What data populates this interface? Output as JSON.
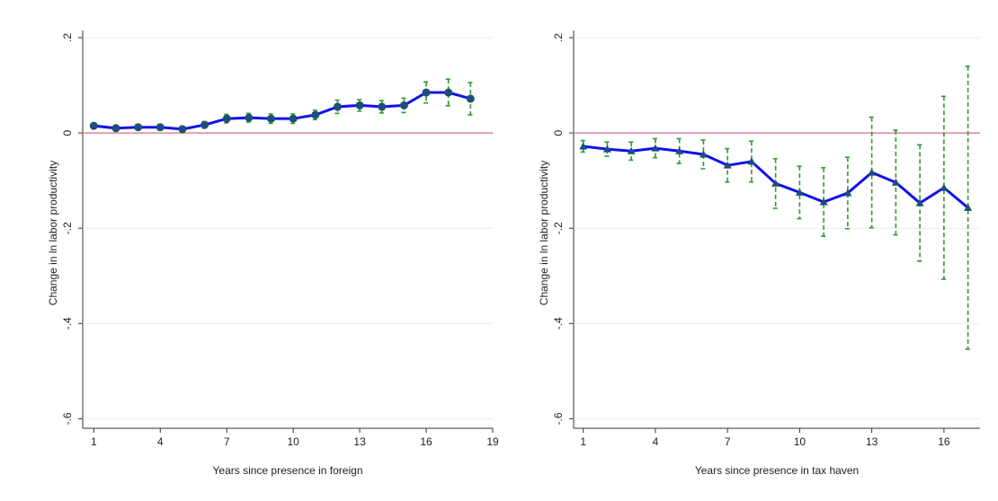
{
  "chart_data": [
    {
      "type": "line",
      "xlabel": "Years since presence in foreign",
      "ylabel": "Change in ln labor productivity",
      "x": [
        1,
        2,
        3,
        4,
        5,
        6,
        7,
        8,
        9,
        10,
        11,
        12,
        13,
        14,
        15,
        16,
        17,
        18
      ],
      "values": [
        0.015,
        0.01,
        0.012,
        0.012,
        0.008,
        0.017,
        0.03,
        0.032,
        0.03,
        0.03,
        0.038,
        0.055,
        0.058,
        0.055,
        0.058,
        0.085,
        0.085,
        0.072
      ],
      "errors": [
        0.005,
        0.005,
        0.005,
        0.006,
        0.006,
        0.007,
        0.009,
        0.009,
        0.01,
        0.01,
        0.01,
        0.014,
        0.012,
        0.013,
        0.015,
        0.022,
        0.028,
        0.034
      ],
      "color": "#1010f0",
      "error_color": "#2e9a2e",
      "marker": "circle",
      "marker_color": "#1f4e79",
      "hline": 0,
      "hline_color": "#d9879a",
      "xlim": [
        0.5,
        19
      ],
      "xticks": [
        1,
        4,
        7,
        10,
        13,
        16,
        19
      ],
      "ylim": [
        -0.62,
        0.2
      ],
      "yticks": [
        {
          "value": 0.2,
          "label": ".2"
        },
        0,
        {
          "value": -0.2,
          "label": "-.2"
        },
        {
          "value": -0.4,
          "label": "-.4"
        },
        {
          "value": -0.6,
          "label": "-.6"
        }
      ],
      "grid": true
    },
    {
      "type": "line",
      "xlabel": "Years since presence in tax haven",
      "ylabel": "Change in ln labor productivity",
      "x": [
        1,
        2,
        3,
        4,
        5,
        6,
        7,
        8,
        9,
        10,
        11,
        12,
        13,
        14,
        15,
        16,
        17
      ],
      "values": [
        -0.028,
        -0.034,
        -0.038,
        -0.032,
        -0.038,
        -0.045,
        -0.068,
        -0.06,
        -0.106,
        -0.125,
        -0.145,
        -0.126,
        -0.083,
        -0.104,
        -0.147,
        -0.115,
        -0.157
      ],
      "errors": [
        0.012,
        0.015,
        0.019,
        0.02,
        0.026,
        0.03,
        0.035,
        0.043,
        0.052,
        0.055,
        0.072,
        0.075,
        0.116,
        0.11,
        0.122,
        0.192,
        0.297
      ],
      "color": "#1010f0",
      "error_color": "#2e9a2e",
      "marker": "triangle",
      "marker_color": "#1f4e79",
      "hline": 0,
      "hline_color": "#d9879a",
      "xlim": [
        0.6,
        17.5
      ],
      "xticks": [
        1,
        4,
        7,
        10,
        13,
        16
      ],
      "ylim": [
        -0.62,
        0.2
      ],
      "yticks": [
        {
          "value": 0.2,
          "label": ".2"
        },
        0,
        {
          "value": -0.2,
          "label": "-.2"
        },
        {
          "value": -0.4,
          "label": "-.4"
        },
        {
          "value": -0.6,
          "label": "-.6"
        }
      ],
      "grid": true
    }
  ]
}
